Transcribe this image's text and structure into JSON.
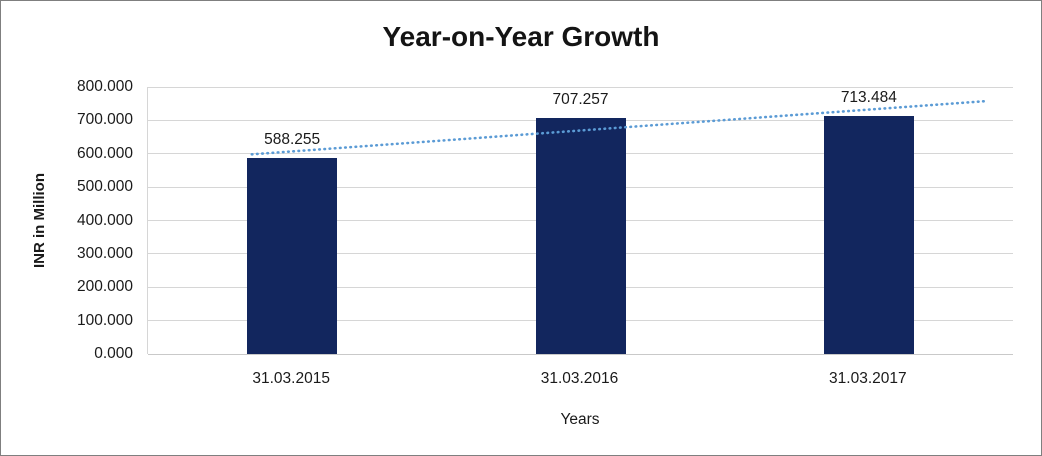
{
  "chart_data": {
    "type": "bar",
    "title": "Year-on-Year Growth",
    "xlabel": "Years",
    "ylabel": "INR in Million",
    "categories": [
      "31.03.2015",
      "31.03.2016",
      "31.03.2017"
    ],
    "values": [
      588.255,
      707.257,
      713.484
    ],
    "value_labels": [
      "588.255",
      "707.257",
      "713.484"
    ],
    "ylim": [
      0,
      800
    ],
    "ytick_values": [
      0,
      100,
      200,
      300,
      400,
      500,
      600,
      700,
      800
    ],
    "ytick_labels": [
      "0.000",
      "100.000",
      "200.000",
      "300.000",
      "400.000",
      "500.000",
      "600.000",
      "700.000",
      "800.000"
    ],
    "grid": "horizontal",
    "legend": "none",
    "bar_color": "#12265e",
    "trendline": {
      "type": "linear",
      "style": "dotted",
      "color": "#5b9bd5"
    }
  }
}
